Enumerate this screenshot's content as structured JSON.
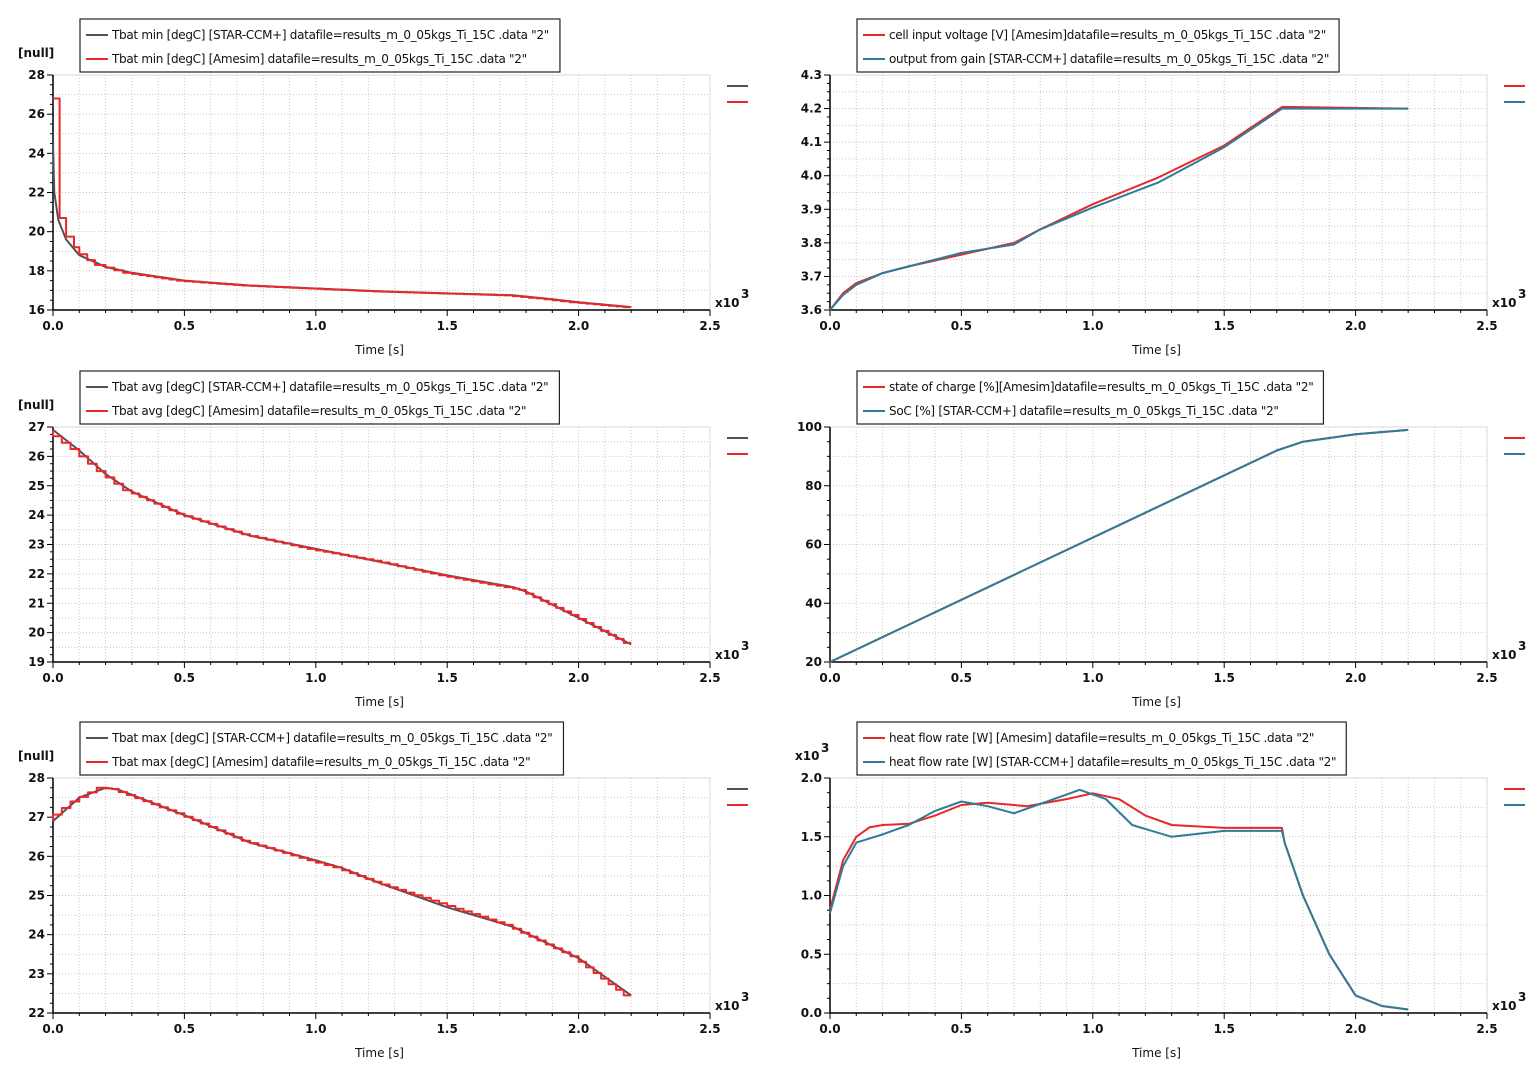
{
  "colors": {
    "star_left": "#4d5459",
    "star_right": "#2f7c98",
    "amesim": "#e8282a",
    "grid": "#c8c8c8"
  },
  "chart_data": [
    {
      "type": "line",
      "xlabel": "Time [s]",
      "x_exponent": "x10",
      "x_exponent_power": "3",
      "ylabel": "[null]",
      "xlim": [
        0,
        2.5
      ],
      "ylim": [
        16,
        28
      ],
      "ystep": 2,
      "xticks": [
        "0.0",
        "0.5",
        "1.0",
        "1.5",
        "2.0",
        "2.5"
      ],
      "yticks": [
        "16",
        "18",
        "20",
        "22",
        "24",
        "26",
        "28"
      ],
      "grid": true,
      "legend": "top",
      "series": [
        {
          "name": "Tbat min [degC] [STAR-CCM+] datafile=results_m_0_05kgs_Ti_15C .data  \"2\"",
          "color": "#4d5459",
          "points": [
            [
              0,
              24.5
            ],
            [
              0.005,
              22
            ],
            [
              0.02,
              20.6
            ],
            [
              0.05,
              19.6
            ],
            [
              0.1,
              18.8
            ],
            [
              0.2,
              18.2
            ],
            [
              0.3,
              17.9
            ],
            [
              0.5,
              17.5
            ],
            [
              0.75,
              17.25
            ],
            [
              1.0,
              17.1
            ],
            [
              1.25,
              16.95
            ],
            [
              1.5,
              16.85
            ],
            [
              1.75,
              16.75
            ],
            [
              1.9,
              16.55
            ],
            [
              2.0,
              16.4
            ],
            [
              2.2,
              16.15
            ]
          ]
        },
        {
          "name": "Tbat min [degC] [Amesim] datafile=results_m_0_05kgs_Ti_15C .data  \"2\"",
          "color": "#e8282a",
          "step": true,
          "points": [
            [
              0,
              26.8
            ],
            [
              0.025,
              26.8
            ],
            [
              0.025,
              20.7
            ],
            [
              0.05,
              20.7
            ],
            [
              0.05,
              19.75
            ],
            [
              0.08,
              19.75
            ],
            [
              0.08,
              19.2
            ],
            [
              0.1,
              19.2
            ],
            [
              0.1,
              18.85
            ],
            [
              0.13,
              18.85
            ],
            [
              0.13,
              18.55
            ],
            [
              0.16,
              18.55
            ],
            [
              0.16,
              18.35
            ],
            [
              0.2,
              18.3
            ],
            [
              0.3,
              17.9
            ],
            [
              0.5,
              17.5
            ],
            [
              0.75,
              17.25
            ],
            [
              1.0,
              17.1
            ],
            [
              1.25,
              16.95
            ],
            [
              1.5,
              16.85
            ],
            [
              1.75,
              16.75
            ],
            [
              1.9,
              16.55
            ],
            [
              2.0,
              16.4
            ],
            [
              2.2,
              16.15
            ]
          ]
        }
      ]
    },
    {
      "type": "line",
      "xlabel": "Time [s]",
      "x_exponent": "x10",
      "x_exponent_power": "3",
      "ylabel": "",
      "xlim": [
        0,
        2.5
      ],
      "ylim": [
        3.6,
        4.3
      ],
      "ystep": 0.1,
      "xticks": [
        "0.0",
        "0.5",
        "1.0",
        "1.5",
        "2.0",
        "2.5"
      ],
      "yticks": [
        "3.6",
        "3.7",
        "3.8",
        "3.9",
        "4.0",
        "4.1",
        "4.2",
        "4.3"
      ],
      "grid": true,
      "legend": "top",
      "series": [
        {
          "name": "cell input voltage [V] [Amesim]datafile=results_m_0_05kgs_Ti_15C .data  \"2\"",
          "color": "#e8282a",
          "points": [
            [
              0,
              3.6
            ],
            [
              0.05,
              3.65
            ],
            [
              0.1,
              3.68
            ],
            [
              0.2,
              3.71
            ],
            [
              0.3,
              3.73
            ],
            [
              0.5,
              3.765
            ],
            [
              0.7,
              3.8
            ],
            [
              0.8,
              3.84
            ],
            [
              1.0,
              3.915
            ],
            [
              1.25,
              3.995
            ],
            [
              1.5,
              4.09
            ],
            [
              1.72,
              4.205
            ],
            [
              2.2,
              4.2
            ]
          ]
        },
        {
          "name": "output from gain [STAR-CCM+] datafile=results_m_0_05kgs_Ti_15C .data  \"2\"",
          "color": "#2f7c98",
          "points": [
            [
              0,
              3.6
            ],
            [
              0.05,
              3.645
            ],
            [
              0.1,
              3.675
            ],
            [
              0.2,
              3.71
            ],
            [
              0.3,
              3.73
            ],
            [
              0.5,
              3.77
            ],
            [
              0.7,
              3.795
            ],
            [
              0.8,
              3.84
            ],
            [
              1.0,
              3.905
            ],
            [
              1.25,
              3.98
            ],
            [
              1.5,
              4.085
            ],
            [
              1.72,
              4.2
            ],
            [
              2.2,
              4.2
            ]
          ]
        }
      ]
    },
    {
      "type": "line",
      "xlabel": "Time [s]",
      "x_exponent": "x10",
      "x_exponent_power": "3",
      "ylabel": "[null]",
      "xlim": [
        0,
        2.5
      ],
      "ylim": [
        19,
        27
      ],
      "ystep": 1,
      "xticks": [
        "0.0",
        "0.5",
        "1.0",
        "1.5",
        "2.0",
        "2.5"
      ],
      "yticks": [
        "19",
        "20",
        "21",
        "22",
        "23",
        "24",
        "25",
        "26",
        "27"
      ],
      "grid": true,
      "legend": "top",
      "series": [
        {
          "name": "Tbat avg [degC] [STAR-CCM+] datafile=results_m_0_05kgs_Ti_15C .data  \"2\"",
          "color": "#4d5459",
          "points": [
            [
              0,
              26.9
            ],
            [
              0.1,
              26.2
            ],
            [
              0.2,
              25.4
            ],
            [
              0.3,
              24.8
            ],
            [
              0.5,
              24.0
            ],
            [
              0.75,
              23.3
            ],
            [
              1.0,
              22.85
            ],
            [
              1.25,
              22.4
            ],
            [
              1.5,
              21.95
            ],
            [
              1.75,
              21.55
            ],
            [
              1.8,
              21.4
            ],
            [
              2.0,
              20.5
            ],
            [
              2.2,
              19.6
            ]
          ]
        },
        {
          "name": "Tbat avg [degC] [Amesim] datafile=results_m_0_05kgs_Ti_15C .data  \"2\"",
          "color": "#e8282a",
          "step": true,
          "points": [
            [
              0,
              26.9
            ],
            [
              0.1,
              26.25
            ],
            [
              0.2,
              25.5
            ],
            [
              0.3,
              24.85
            ],
            [
              0.5,
              24.05
            ],
            [
              0.75,
              23.35
            ],
            [
              1.0,
              22.85
            ],
            [
              1.25,
              22.45
            ],
            [
              1.5,
              21.95
            ],
            [
              1.75,
              21.55
            ],
            [
              1.8,
              21.45
            ],
            [
              2.0,
              20.6
            ],
            [
              2.2,
              19.65
            ]
          ]
        }
      ]
    },
    {
      "type": "line",
      "xlabel": "Time [s]",
      "x_exponent": "x10",
      "x_exponent_power": "3",
      "ylabel": "",
      "xlim": [
        0,
        2.5
      ],
      "ylim": [
        20,
        100
      ],
      "ystep": 20,
      "xticks": [
        "0.0",
        "0.5",
        "1.0",
        "1.5",
        "2.0",
        "2.5"
      ],
      "yticks": [
        "20",
        "40",
        "60",
        "80",
        "100"
      ],
      "grid": true,
      "legend": "top",
      "series": [
        {
          "name": "state of charge [%][Amesim]datafile=results_m_0_05kgs_Ti_15C .data  \"2\"",
          "color": "#e8282a",
          "points": [
            [
              0,
              20
            ],
            [
              1.7,
              92
            ],
            [
              1.8,
              95
            ],
            [
              2.0,
              97.5
            ],
            [
              2.2,
              99
            ]
          ]
        },
        {
          "name": "SoC [%] [STAR-CCM+] datafile=results_m_0_05kgs_Ti_15C .data  \"2\"",
          "color": "#2f7c98",
          "points": [
            [
              0,
              20
            ],
            [
              1.7,
              92
            ],
            [
              1.8,
              95
            ],
            [
              2.0,
              97.5
            ],
            [
              2.2,
              99
            ]
          ]
        }
      ]
    },
    {
      "type": "line",
      "xlabel": "Time [s]",
      "x_exponent": "x10",
      "x_exponent_power": "3",
      "ylabel": "[null]",
      "xlim": [
        0,
        2.5
      ],
      "ylim": [
        22,
        28
      ],
      "ystep": 1,
      "xticks": [
        "0.0",
        "0.5",
        "1.0",
        "1.5",
        "2.0",
        "2.5"
      ],
      "yticks": [
        "22",
        "23",
        "24",
        "25",
        "26",
        "27",
        "28"
      ],
      "grid": true,
      "legend": "top",
      "series": [
        {
          "name": "Tbat max [degC] [STAR-CCM+] datafile=results_m_0_05kgs_Ti_15C .data  \"2\"",
          "color": "#4d5459",
          "points": [
            [
              0,
              26.9
            ],
            [
              0.1,
              27.5
            ],
            [
              0.2,
              27.75
            ],
            [
              0.25,
              27.7
            ],
            [
              0.5,
              27.05
            ],
            [
              0.75,
              26.35
            ],
            [
              1.0,
              25.9
            ],
            [
              1.1,
              25.7
            ],
            [
              1.25,
              25.3
            ],
            [
              1.5,
              24.7
            ],
            [
              1.75,
              24.2
            ],
            [
              2.0,
              23.4
            ],
            [
              2.2,
              22.45
            ]
          ]
        },
        {
          "name": "Tbat max [degC] [Amesim] datafile=results_m_0_05kgs_Ti_15C .data  \"2\"",
          "color": "#e8282a",
          "step": true,
          "points": [
            [
              0,
              26.9
            ],
            [
              0.1,
              27.4
            ],
            [
              0.2,
              27.75
            ],
            [
              0.25,
              27.72
            ],
            [
              0.5,
              27.1
            ],
            [
              0.75,
              26.4
            ],
            [
              1.0,
              25.9
            ],
            [
              1.1,
              25.72
            ],
            [
              1.25,
              25.35
            ],
            [
              1.5,
              24.8
            ],
            [
              1.75,
              24.25
            ],
            [
              2.0,
              23.45
            ],
            [
              2.2,
              22.45
            ]
          ]
        }
      ]
    },
    {
      "type": "line",
      "xlabel": "Time [s]",
      "x_exponent": "x10",
      "x_exponent_power": "3",
      "ylabel": "x10",
      "ylabel_power": "3",
      "xlim": [
        0,
        2.5
      ],
      "ylim": [
        0,
        2.0
      ],
      "ystep": 0.5,
      "xticks": [
        "0.0",
        "0.5",
        "1.0",
        "1.5",
        "2.0",
        "2.5"
      ],
      "yticks": [
        "0.0",
        "0.5",
        "1.0",
        "1.5",
        "2.0"
      ],
      "grid": true,
      "legend": "top",
      "series": [
        {
          "name": "heat flow rate [W] [Amesim] datafile=results_m_0_05kgs_Ti_15C .data  \"2\"",
          "color": "#e8282a",
          "points": [
            [
              0,
              0.88
            ],
            [
              0.05,
              1.3
            ],
            [
              0.1,
              1.5
            ],
            [
              0.15,
              1.58
            ],
            [
              0.2,
              1.6
            ],
            [
              0.3,
              1.61
            ],
            [
              0.4,
              1.68
            ],
            [
              0.5,
              1.77
            ],
            [
              0.6,
              1.79
            ],
            [
              0.75,
              1.76
            ],
            [
              0.9,
              1.82
            ],
            [
              1.0,
              1.87
            ],
            [
              1.1,
              1.82
            ],
            [
              1.2,
              1.68
            ],
            [
              1.3,
              1.6
            ],
            [
              1.5,
              1.575
            ],
            [
              1.72,
              1.575
            ],
            [
              1.73,
              1.45
            ],
            [
              1.8,
              1.0
            ],
            [
              1.9,
              0.5
            ],
            [
              2.0,
              0.15
            ],
            [
              2.1,
              0.06
            ],
            [
              2.2,
              0.03
            ]
          ]
        },
        {
          "name": "heat flow rate [W] [STAR-CCM+] datafile=results_m_0_05kgs_Ti_15C .data  \"2\"",
          "color": "#2f7c98",
          "points": [
            [
              0,
              0.85
            ],
            [
              0.05,
              1.25
            ],
            [
              0.1,
              1.45
            ],
            [
              0.2,
              1.52
            ],
            [
              0.3,
              1.6
            ],
            [
              0.4,
              1.72
            ],
            [
              0.5,
              1.8
            ],
            [
              0.6,
              1.76
            ],
            [
              0.7,
              1.7
            ],
            [
              0.8,
              1.78
            ],
            [
              0.95,
              1.9
            ],
            [
              1.05,
              1.82
            ],
            [
              1.15,
              1.6
            ],
            [
              1.3,
              1.5
            ],
            [
              1.5,
              1.55
            ],
            [
              1.72,
              1.55
            ],
            [
              1.73,
              1.45
            ],
            [
              1.8,
              1.0
            ],
            [
              1.9,
              0.5
            ],
            [
              2.0,
              0.15
            ],
            [
              2.1,
              0.06
            ],
            [
              2.2,
              0.03
            ]
          ]
        }
      ]
    }
  ]
}
